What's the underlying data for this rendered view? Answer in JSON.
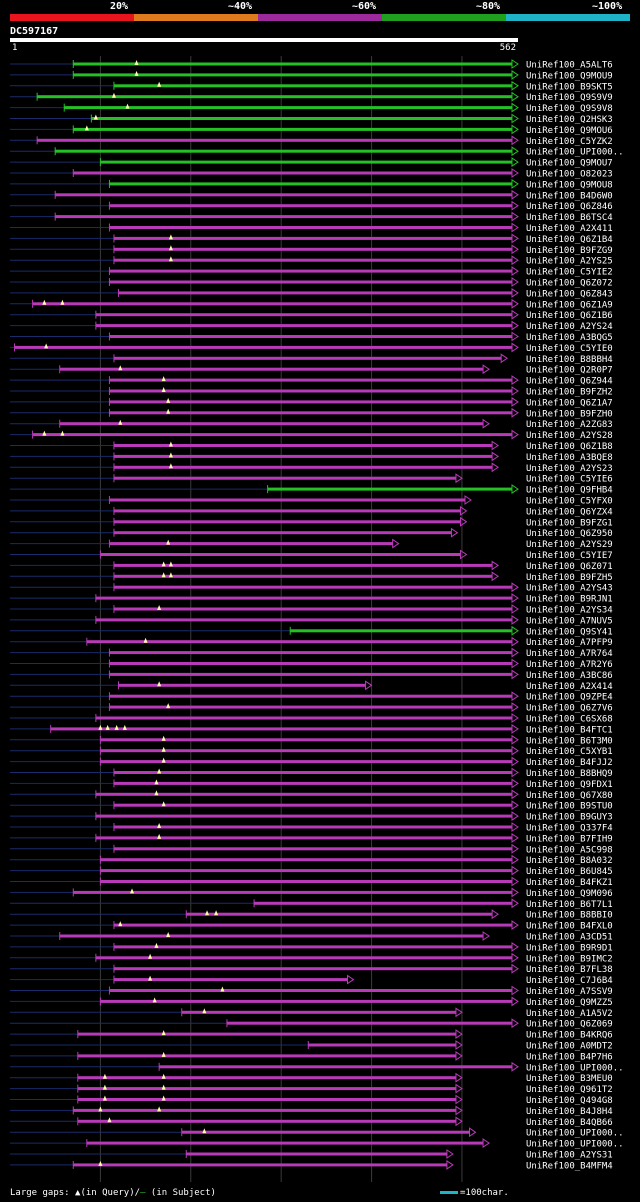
{
  "legend": {
    "labels": [
      "20%",
      "~40%",
      "~60%",
      "~80%",
      "~100%"
    ],
    "colors": [
      "#e8141e",
      "#e07a1f",
      "#9c2a9c",
      "#1fa11f",
      "#1fb3c7"
    ]
  },
  "query": {
    "id": "DC597167",
    "start_label": "1",
    "end_label": "562",
    "length": 562
  },
  "colors": {
    "green": "#25c025",
    "magenta": "#b83ab8",
    "tail": "#1a2a6a",
    "grid": "#3a3a3a"
  },
  "hits": [
    {
      "id": "UniRef100_A5ALT6",
      "s": 70,
      "e": 562,
      "c": "green",
      "tri": true,
      "tail": true,
      "m": [
        140
      ]
    },
    {
      "id": "UniRef100_Q9MOU9",
      "s": 70,
      "e": 562,
      "c": "green",
      "tri": true,
      "tail": true,
      "m": [
        140
      ]
    },
    {
      "id": "UniRef100_B9SKT5",
      "s": 115,
      "e": 562,
      "c": "green",
      "tri": true,
      "tail": true,
      "m": [
        165
      ]
    },
    {
      "id": "UniRef100_Q9S9V9",
      "s": 30,
      "e": 562,
      "c": "green",
      "tri": true,
      "tail": true,
      "m": [
        115
      ]
    },
    {
      "id": "UniRef100_Q9S9V8",
      "s": 60,
      "e": 562,
      "c": "green",
      "tri": true,
      "tail": true,
      "m": [
        130
      ]
    },
    {
      "id": "UniRef100_Q2HSK3",
      "s": 90,
      "e": 562,
      "c": "green",
      "tri": true,
      "tail": true,
      "m": [
        95
      ]
    },
    {
      "id": "UniRef100_Q9MOU6",
      "s": 70,
      "e": 562,
      "c": "green",
      "tri": true,
      "tail": true,
      "m": [
        85
      ]
    },
    {
      "id": "UniRef100_C5YZK2",
      "s": 30,
      "e": 562,
      "c": "magenta",
      "tri": true,
      "tail": true,
      "m": []
    },
    {
      "id": "UniRef100_UPI000..",
      "s": 50,
      "e": 562,
      "c": "green",
      "tri": true,
      "tail": true,
      "m": []
    },
    {
      "id": "UniRef100_Q9MOU7",
      "s": 100,
      "e": 562,
      "c": "green",
      "tri": true,
      "tail": true,
      "m": []
    },
    {
      "id": "UniRef100_O82023",
      "s": 70,
      "e": 562,
      "c": "magenta",
      "tri": true,
      "tail": true,
      "m": []
    },
    {
      "id": "UniRef100_Q9MOU8",
      "s": 110,
      "e": 562,
      "c": "green",
      "tri": true,
      "tail": true,
      "m": []
    },
    {
      "id": "UniRef100_B4D6W0",
      "s": 50,
      "e": 562,
      "c": "magenta",
      "tri": true,
      "tail": true,
      "m": []
    },
    {
      "id": "UniRef100_Q6Z846",
      "s": 110,
      "e": 562,
      "c": "magenta",
      "tri": true,
      "tail": true,
      "m": []
    },
    {
      "id": "UniRef100_B6TSC4",
      "s": 50,
      "e": 562,
      "c": "magenta",
      "tri": true,
      "tail": true,
      "m": []
    },
    {
      "id": "UniRef100_A2X411",
      "s": 110,
      "e": 562,
      "c": "magenta",
      "tri": true,
      "tail": true,
      "m": []
    },
    {
      "id": "UniRef100_Q6Z1B4",
      "s": 115,
      "e": 562,
      "c": "magenta",
      "tri": true,
      "tail": true,
      "m": [
        178
      ]
    },
    {
      "id": "UniRef100_B9FZG9",
      "s": 115,
      "e": 562,
      "c": "magenta",
      "tri": true,
      "tail": true,
      "m": [
        178
      ]
    },
    {
      "id": "UniRef100_A2YS25",
      "s": 115,
      "e": 562,
      "c": "magenta",
      "tri": true,
      "tail": true,
      "m": [
        178
      ]
    },
    {
      "id": "UniRef100_C5YIE2",
      "s": 110,
      "e": 562,
      "c": "magenta",
      "tri": true,
      "tail": true,
      "m": []
    },
    {
      "id": "UniRef100_Q6Z072",
      "s": 110,
      "e": 562,
      "c": "magenta",
      "tri": true,
      "tail": true,
      "m": []
    },
    {
      "id": "UniRef100_Q6Z843",
      "s": 120,
      "e": 562,
      "c": "magenta",
      "tri": true,
      "tail": true,
      "m": []
    },
    {
      "id": "UniRef100_Q6Z1A9",
      "s": 25,
      "e": 562,
      "c": "magenta",
      "tri": true,
      "tail": true,
      "m": [
        38,
        58
      ]
    },
    {
      "id": "UniRef100_Q6Z1B6",
      "s": 95,
      "e": 562,
      "c": "magenta",
      "tri": true,
      "tail": true,
      "m": []
    },
    {
      "id": "UniRef100_A2YS24",
      "s": 95,
      "e": 562,
      "c": "magenta",
      "tri": true,
      "tail": true,
      "m": []
    },
    {
      "id": "UniRef100_A3BQG5",
      "s": 110,
      "e": 562,
      "c": "magenta",
      "tri": true,
      "tail": true,
      "m": []
    },
    {
      "id": "UniRef100_C5YIE0",
      "s": 5,
      "e": 562,
      "c": "magenta",
      "tri": true,
      "tail": true,
      "m": [
        40
      ]
    },
    {
      "id": "UniRef100_B8BBH4",
      "s": 115,
      "e": 550,
      "c": "magenta",
      "tri": true,
      "tail": true,
      "m": []
    },
    {
      "id": "UniRef100_Q2R0P7",
      "s": 55,
      "e": 530,
      "c": "magenta",
      "tri": true,
      "tail": true,
      "m": [
        122
      ]
    },
    {
      "id": "UniRef100_Q6Z944",
      "s": 110,
      "e": 562,
      "c": "magenta",
      "tri": true,
      "tail": true,
      "m": [
        170
      ]
    },
    {
      "id": "UniRef100_B9FZH2",
      "s": 110,
      "e": 562,
      "c": "magenta",
      "tri": true,
      "tail": true,
      "m": [
        170
      ]
    },
    {
      "id": "UniRef100_Q6Z1A7",
      "s": 110,
      "e": 562,
      "c": "magenta",
      "tri": true,
      "tail": true,
      "m": [
        175
      ]
    },
    {
      "id": "UniRef100_B9FZH0",
      "s": 110,
      "e": 562,
      "c": "magenta",
      "tri": true,
      "tail": true,
      "m": [
        175
      ]
    },
    {
      "id": "UniRef100_A2ZG83",
      "s": 55,
      "e": 530,
      "c": "magenta",
      "tri": true,
      "tail": true,
      "m": [
        122
      ]
    },
    {
      "id": "UniRef100_A2YS28",
      "s": 25,
      "e": 562,
      "c": "magenta",
      "tri": true,
      "tail": true,
      "m": [
        38,
        58
      ]
    },
    {
      "id": "UniRef100_Q6Z1B8",
      "s": 115,
      "e": 540,
      "c": "magenta",
      "tri": true,
      "tail": true,
      "m": [
        178
      ]
    },
    {
      "id": "UniRef100_A3BQE8",
      "s": 115,
      "e": 540,
      "c": "magenta",
      "tri": true,
      "tail": true,
      "m": [
        178
      ]
    },
    {
      "id": "UniRef100_A2YS23",
      "s": 115,
      "e": 540,
      "c": "magenta",
      "tri": true,
      "tail": true,
      "m": [
        178
      ]
    },
    {
      "id": "UniRef100_C5YIE6",
      "s": 115,
      "e": 500,
      "c": "magenta",
      "tri": true,
      "tail": true,
      "m": []
    },
    {
      "id": "UniRef100_Q9FHB4",
      "s": 285,
      "e": 562,
      "c": "green",
      "tri": true,
      "tail": true,
      "m": []
    },
    {
      "id": "UniRef100_C5YFX0",
      "s": 110,
      "e": 510,
      "c": "magenta",
      "tri": true,
      "tail": true,
      "m": []
    },
    {
      "id": "UniRef100_Q6YZX4",
      "s": 115,
      "e": 505,
      "c": "magenta",
      "tri": true,
      "tail": true,
      "m": []
    },
    {
      "id": "UniRef100_B9FZG1",
      "s": 115,
      "e": 505,
      "c": "magenta",
      "tri": true,
      "tail": true,
      "m": []
    },
    {
      "id": "UniRef100_Q6Z950",
      "s": 115,
      "e": 495,
      "c": "magenta",
      "tri": true,
      "tail": true,
      "m": []
    },
    {
      "id": "UniRef100_A2YS29",
      "s": 110,
      "e": 430,
      "c": "magenta",
      "tri": true,
      "tail": true,
      "m": [
        175
      ]
    },
    {
      "id": "UniRef100_C5YIE7",
      "s": 100,
      "e": 505,
      "c": "magenta",
      "tri": true,
      "tail": true,
      "m": []
    },
    {
      "id": "UniRef100_Q6Z071",
      "s": 115,
      "e": 540,
      "c": "magenta",
      "tri": true,
      "tail": true,
      "m": [
        170,
        178
      ]
    },
    {
      "id": "UniRef100_B9FZH5",
      "s": 115,
      "e": 540,
      "c": "magenta",
      "tri": true,
      "tail": true,
      "m": [
        170,
        178
      ]
    },
    {
      "id": "UniRef100_A2YS43",
      "s": 115,
      "e": 562,
      "c": "magenta",
      "tri": true,
      "tail": true,
      "m": []
    },
    {
      "id": "UniRef100_B9RJN1",
      "s": 95,
      "e": 562,
      "c": "magenta",
      "tri": true,
      "tail": true,
      "m": []
    },
    {
      "id": "UniRef100_A2YS34",
      "s": 115,
      "e": 562,
      "c": "magenta",
      "tri": true,
      "tail": true,
      "m": [
        165
      ]
    },
    {
      "id": "UniRef100_A7NUV5",
      "s": 95,
      "e": 562,
      "c": "magenta",
      "tri": true,
      "tail": true,
      "m": []
    },
    {
      "id": "UniRef100_Q9SY41",
      "s": 310,
      "e": 562,
      "c": "green",
      "tri": true,
      "tail": true,
      "m": []
    },
    {
      "id": "UniRef100_A7PFP9",
      "s": 85,
      "e": 562,
      "c": "magenta",
      "tri": true,
      "tail": true,
      "m": [
        150
      ]
    },
    {
      "id": "UniRef100_A7R764",
      "s": 110,
      "e": 562,
      "c": "magenta",
      "tri": true,
      "tail": true,
      "m": []
    },
    {
      "id": "UniRef100_A7R2Y6",
      "s": 110,
      "e": 562,
      "c": "magenta",
      "tri": true,
      "tail": true,
      "m": []
    },
    {
      "id": "UniRef100_A3BC86",
      "s": 110,
      "e": 562,
      "c": "magenta",
      "tri": true,
      "tail": true,
      "m": []
    },
    {
      "id": "UniRef100_A2X414",
      "s": 120,
      "e": 400,
      "c": "magenta",
      "tri": true,
      "tail": true,
      "m": [
        165
      ]
    },
    {
      "id": "UniRef100_Q9ZPE4",
      "s": 110,
      "e": 562,
      "c": "magenta",
      "tri": true,
      "tail": true,
      "m": []
    },
    {
      "id": "UniRef100_Q6Z7V6",
      "s": 110,
      "e": 562,
      "c": "magenta",
      "tri": true,
      "tail": true,
      "m": [
        175
      ]
    },
    {
      "id": "UniRef100_C6SX68",
      "s": 95,
      "e": 562,
      "c": "magenta",
      "tri": true,
      "tail": true,
      "m": []
    },
    {
      "id": "UniRef100_B4FTC1",
      "s": 45,
      "e": 562,
      "c": "magenta",
      "tri": true,
      "tail": true,
      "m": [
        100,
        108,
        118,
        127
      ]
    },
    {
      "id": "UniRef100_B6T3M0",
      "s": 100,
      "e": 562,
      "c": "magenta",
      "tri": true,
      "tail": true,
      "m": [
        170
      ]
    },
    {
      "id": "UniRef100_C5XYB1",
      "s": 100,
      "e": 562,
      "c": "magenta",
      "tri": true,
      "tail": true,
      "m": [
        170
      ]
    },
    {
      "id": "UniRef100_B4FJJ2",
      "s": 100,
      "e": 562,
      "c": "magenta",
      "tri": true,
      "tail": true,
      "m": [
        170
      ]
    },
    {
      "id": "UniRef100_B8BHQ9",
      "s": 115,
      "e": 562,
      "c": "magenta",
      "tri": true,
      "tail": true,
      "m": [
        165
      ]
    },
    {
      "id": "UniRef100_Q9FDX1",
      "s": 115,
      "e": 562,
      "c": "magenta",
      "tri": true,
      "tail": true,
      "m": [
        162
      ]
    },
    {
      "id": "UniRef100_Q67X80",
      "s": 95,
      "e": 562,
      "c": "magenta",
      "tri": true,
      "tail": true,
      "m": [
        162
      ]
    },
    {
      "id": "UniRef100_B9STU0",
      "s": 115,
      "e": 562,
      "c": "magenta",
      "tri": true,
      "tail": true,
      "m": [
        170
      ]
    },
    {
      "id": "UniRef100_B9GUY3",
      "s": 95,
      "e": 562,
      "c": "magenta",
      "tri": true,
      "tail": true,
      "m": []
    },
    {
      "id": "UniRef100_Q337F4",
      "s": 115,
      "e": 562,
      "c": "magenta",
      "tri": true,
      "tail": true,
      "m": [
        165
      ]
    },
    {
      "id": "UniRef100_B7FIH9",
      "s": 95,
      "e": 562,
      "c": "magenta",
      "tri": true,
      "tail": true,
      "m": [
        165
      ]
    },
    {
      "id": "UniRef100_A5C998",
      "s": 115,
      "e": 562,
      "c": "magenta",
      "tri": true,
      "tail": true,
      "m": []
    },
    {
      "id": "UniRef100_B8A032",
      "s": 100,
      "e": 562,
      "c": "magenta",
      "tri": true,
      "tail": true,
      "m": []
    },
    {
      "id": "UniRef100_B6U845",
      "s": 100,
      "e": 562,
      "c": "magenta",
      "tri": true,
      "tail": true,
      "m": []
    },
    {
      "id": "UniRef100_B4FKZ1",
      "s": 100,
      "e": 562,
      "c": "magenta",
      "tri": true,
      "tail": true,
      "m": []
    },
    {
      "id": "UniRef100_Q9M096",
      "s": 70,
      "e": 562,
      "c": "magenta",
      "tri": true,
      "tail": true,
      "m": [
        135
      ]
    },
    {
      "id": "UniRef100_B6T7L1",
      "s": 270,
      "e": 562,
      "c": "magenta",
      "tri": true,
      "tail": true,
      "m": []
    },
    {
      "id": "UniRef100_B8BBI0",
      "s": 195,
      "e": 540,
      "c": "magenta",
      "tri": true,
      "tail": true,
      "m": [
        218,
        228
      ]
    },
    {
      "id": "UniRef100_B4FXL0",
      "s": 115,
      "e": 562,
      "c": "magenta",
      "tri": true,
      "tail": true,
      "m": [
        122
      ]
    },
    {
      "id": "UniRef100_A3CD51",
      "s": 55,
      "e": 530,
      "c": "magenta",
      "tri": true,
      "tail": true,
      "m": [
        175
      ]
    },
    {
      "id": "UniRef100_B9R9D1",
      "s": 115,
      "e": 562,
      "c": "magenta",
      "tri": true,
      "tail": true,
      "m": [
        162
      ]
    },
    {
      "id": "UniRef100_B9IMC2",
      "s": 95,
      "e": 562,
      "c": "magenta",
      "tri": true,
      "tail": true,
      "m": [
        155
      ]
    },
    {
      "id": "UniRef100_B7FL38",
      "s": 115,
      "e": 562,
      "c": "magenta",
      "tri": true,
      "tail": true,
      "m": []
    },
    {
      "id": "UniRef100_C7J6B4",
      "s": 115,
      "e": 380,
      "c": "magenta",
      "tri": true,
      "tail": true,
      "m": [
        155
      ]
    },
    {
      "id": "UniRef100_A7SSV9",
      "s": 110,
      "e": 562,
      "c": "magenta",
      "tri": true,
      "tail": true,
      "m": [
        235
      ]
    },
    {
      "id": "UniRef100_Q9MZZ5",
      "s": 100,
      "e": 562,
      "c": "magenta",
      "tri": true,
      "tail": true,
      "m": [
        160
      ]
    },
    {
      "id": "UniRef100_A1A5V2",
      "s": 190,
      "e": 500,
      "c": "magenta",
      "tri": true,
      "tail": true,
      "m": [
        215
      ]
    },
    {
      "id": "UniRef100_Q6Z069",
      "s": 240,
      "e": 562,
      "c": "magenta",
      "tri": true,
      "tail": true,
      "m": []
    },
    {
      "id": "UniRef100_B4KRQ6",
      "s": 75,
      "e": 500,
      "c": "magenta",
      "tri": true,
      "tail": true,
      "m": [
        170
      ]
    },
    {
      "id": "UniRef100_A0MDT2",
      "s": 330,
      "e": 500,
      "c": "magenta",
      "tri": true,
      "tail": true,
      "m": []
    },
    {
      "id": "UniRef100_B4P7H6",
      "s": 75,
      "e": 500,
      "c": "magenta",
      "tri": true,
      "tail": true,
      "m": [
        170
      ]
    },
    {
      "id": "UniRef100_UPI000..",
      "s": 165,
      "e": 562,
      "c": "magenta",
      "tri": true,
      "tail": true,
      "m": []
    },
    {
      "id": "UniRef100_B3MEU0",
      "s": 75,
      "e": 500,
      "c": "magenta",
      "tri": true,
      "tail": true,
      "m": [
        105,
        170
      ]
    },
    {
      "id": "UniRef100_Q961T2",
      "s": 75,
      "e": 500,
      "c": "magenta",
      "tri": true,
      "tail": true,
      "m": [
        105,
        170
      ]
    },
    {
      "id": "UniRef100_Q494G8",
      "s": 75,
      "e": 500,
      "c": "magenta",
      "tri": true,
      "tail": true,
      "m": [
        105,
        170
      ]
    },
    {
      "id": "UniRef100_B4J8H4",
      "s": 70,
      "e": 500,
      "c": "magenta",
      "tri": true,
      "tail": true,
      "m": [
        100,
        165
      ]
    },
    {
      "id": "UniRef100_B4QB66",
      "s": 75,
      "e": 500,
      "c": "magenta",
      "tri": true,
      "tail": true,
      "m": [
        110
      ]
    },
    {
      "id": "UniRef100_UPI000..",
      "s": 190,
      "e": 515,
      "c": "magenta",
      "tri": true,
      "tail": true,
      "m": [
        215
      ]
    },
    {
      "id": "UniRef100_UPI000..",
      "s": 85,
      "e": 530,
      "c": "magenta",
      "tri": true,
      "tail": true,
      "m": []
    },
    {
      "id": "UniRef100_A2YS31",
      "s": 195,
      "e": 490,
      "c": "magenta",
      "tri": true,
      "tail": true,
      "m": []
    },
    {
      "id": "UniRef100_B4MFM4",
      "s": 70,
      "e": 490,
      "c": "magenta",
      "tri": true,
      "tail": true,
      "m": [
        100
      ]
    }
  ],
  "footer": {
    "large_gaps_label": "Large gaps: ",
    "query_marker": "▲",
    "query_text": "(in Query)/",
    "subject_marker": "—",
    "subject_text": " (in Subject)",
    "scale_text": "=100char."
  }
}
